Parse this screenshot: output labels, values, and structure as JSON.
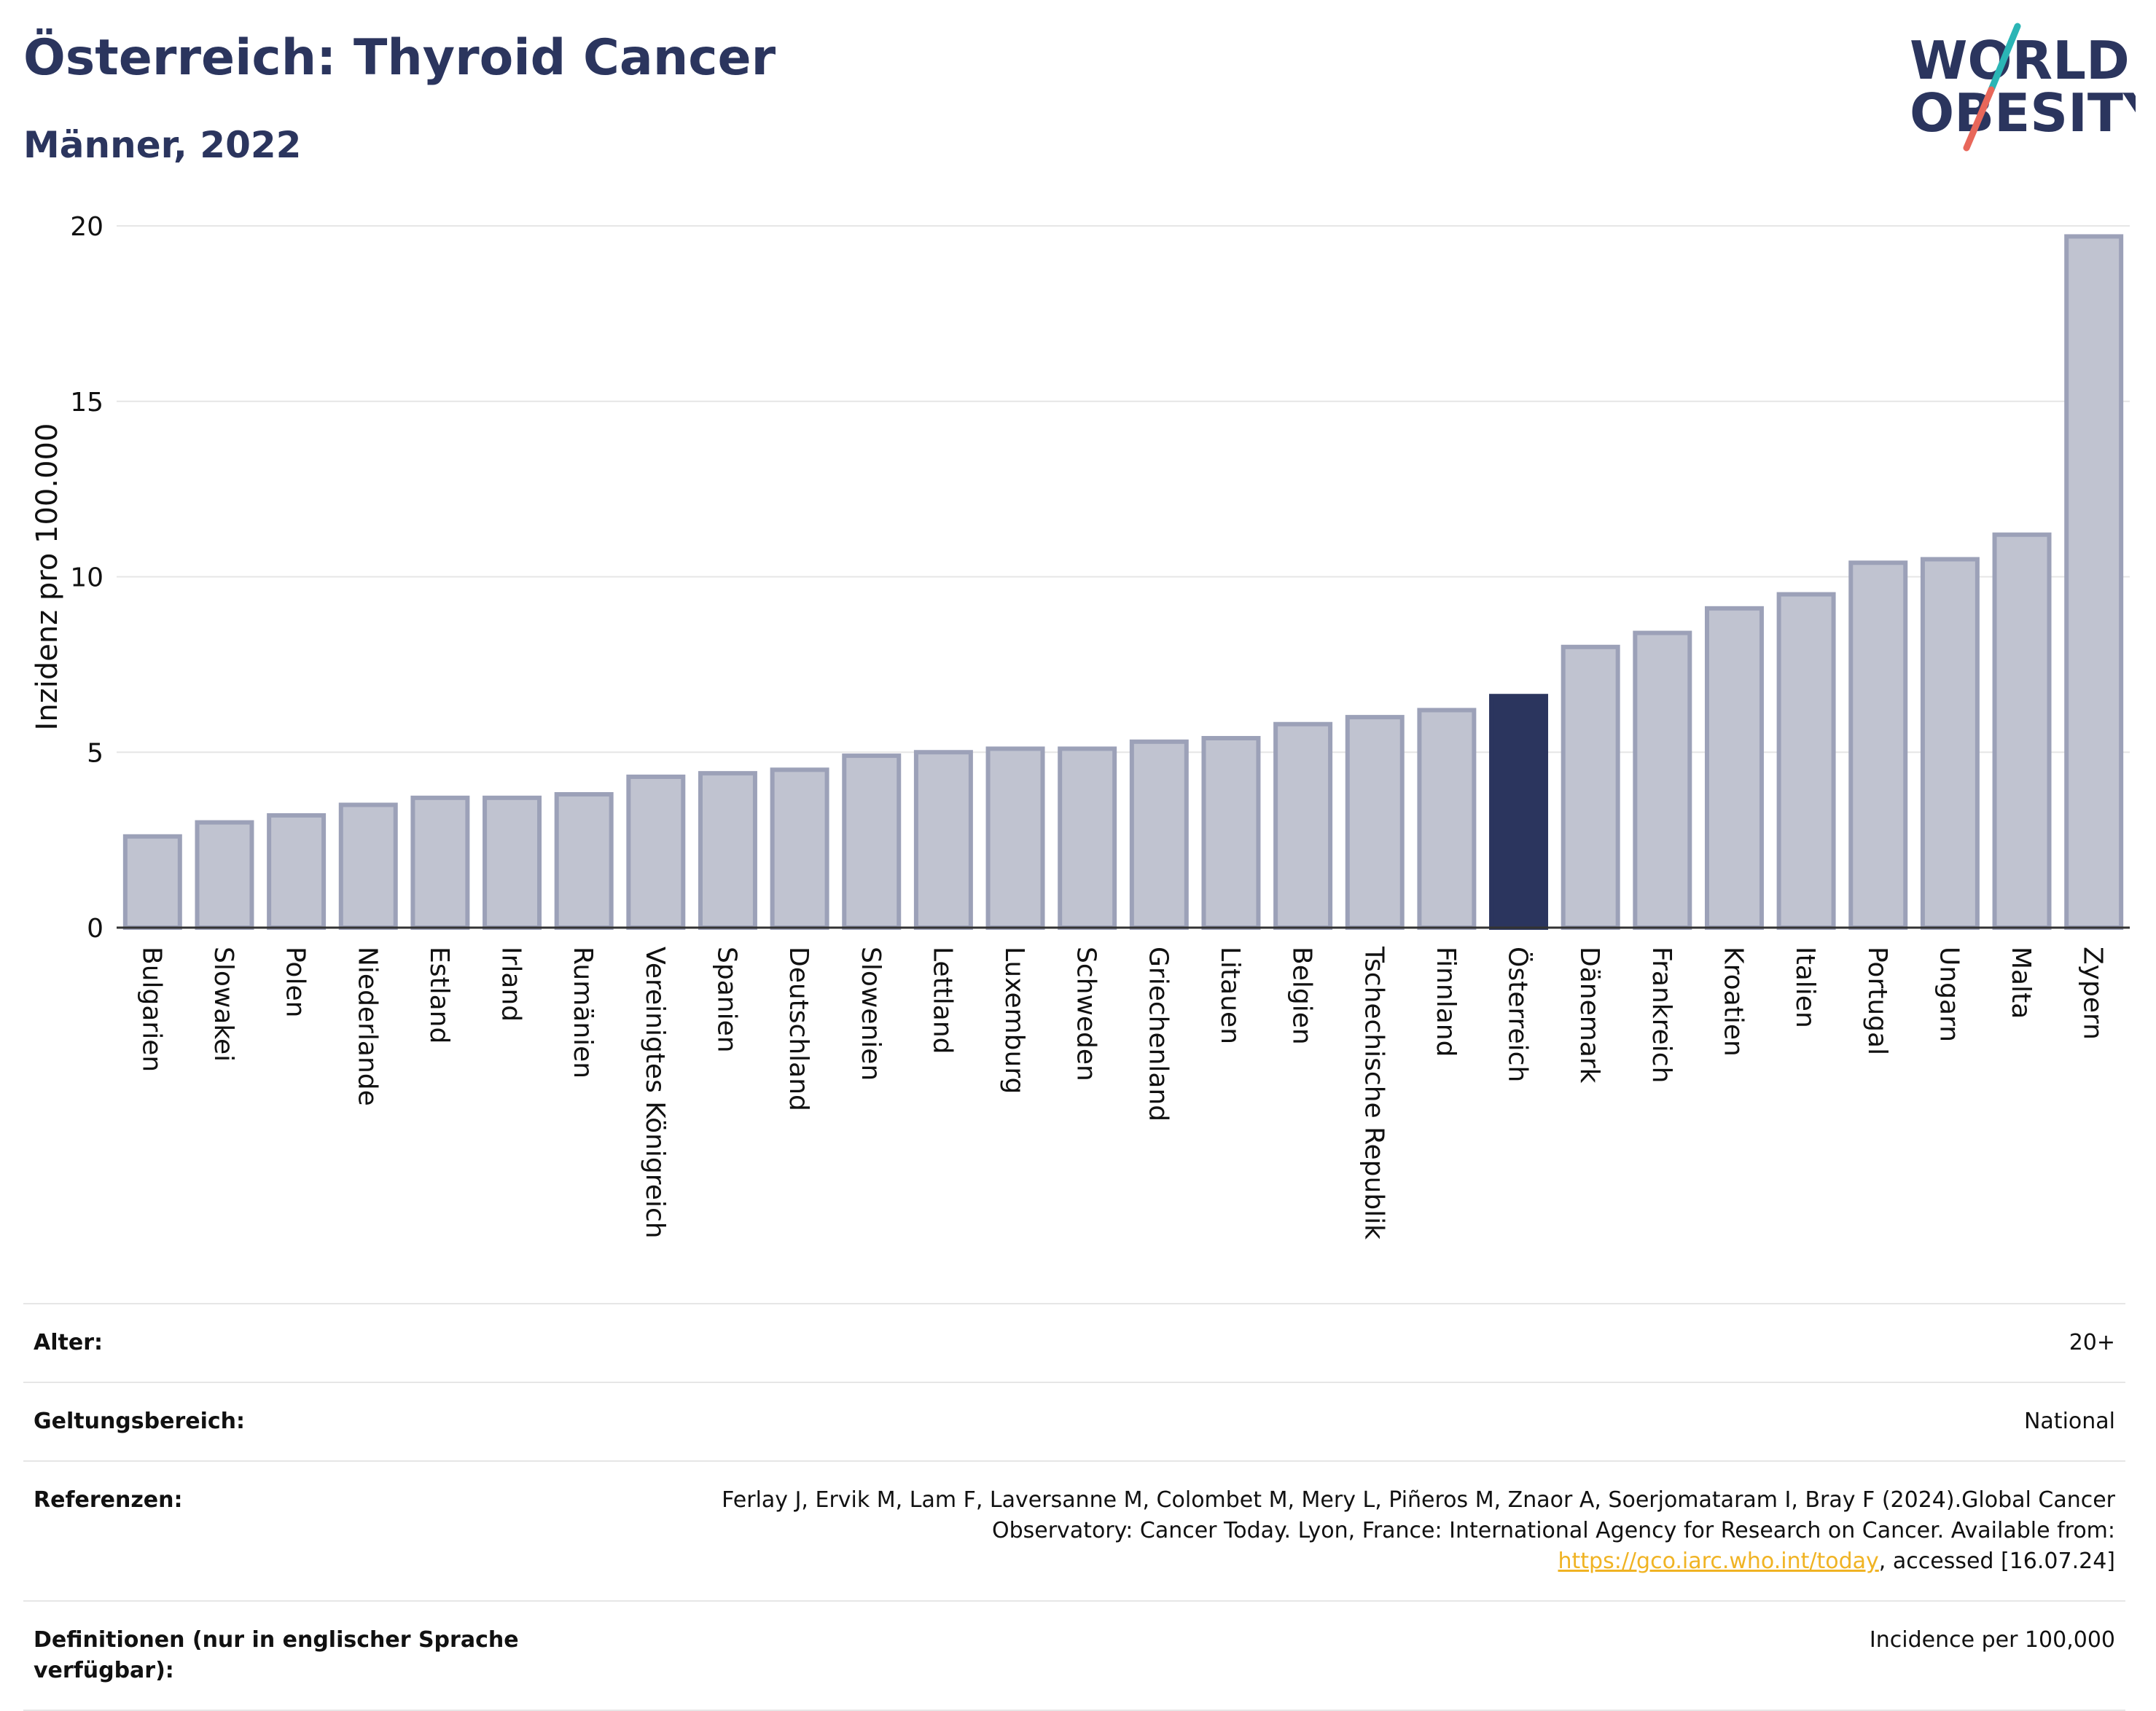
{
  "header": {
    "title": "Österreich: Thyroid Cancer",
    "subtitle": "Männer, 2022"
  },
  "logo": {
    "line1": "WORLD",
    "line2": "OBESITY",
    "colors": {
      "text": "#2b355e",
      "slash_top": "#2bb5b5",
      "slash_bottom": "#e8675a"
    }
  },
  "colors": {
    "bar": "#c0c3d0",
    "bar_border": "#9ca1b8",
    "highlight": "#2b355e",
    "grid": "#e6e6e6",
    "axis": "#333333"
  },
  "chart_data": {
    "type": "bar",
    "title": "Österreich: Thyroid Cancer",
    "subtitle": "Männer, 2022",
    "xlabel": "",
    "ylabel": "Inzidenz pro 100.000",
    "ylim": [
      0,
      20
    ],
    "yticks": [
      0,
      5,
      10,
      15,
      20
    ],
    "grid": true,
    "highlight": "Österreich",
    "categories": [
      "Bulgarien",
      "Slowakei",
      "Polen",
      "Niederlande",
      "Estland",
      "Irland",
      "Rumänien",
      "Vereinigtes Königreich",
      "Spanien",
      "Deutschland",
      "Slowenien",
      "Lettland",
      "Luxemburg",
      "Schweden",
      "Griechenland",
      "Litauen",
      "Belgien",
      "Tschechische Republik",
      "Finnland",
      "Österreich",
      "Dänemark",
      "Frankreich",
      "Kroatien",
      "Italien",
      "Portugal",
      "Ungarn",
      "Malta",
      "Zypern"
    ],
    "values": [
      2.6,
      3.0,
      3.2,
      3.5,
      3.7,
      3.7,
      3.8,
      4.3,
      4.4,
      4.5,
      4.9,
      5.0,
      5.1,
      5.1,
      5.3,
      5.4,
      5.8,
      6.0,
      6.2,
      6.6,
      8.0,
      8.4,
      9.1,
      9.5,
      10.4,
      10.5,
      11.2,
      19.7
    ]
  },
  "meta": [
    {
      "label": "Alter:",
      "value": "20+"
    },
    {
      "label": "Geltungsbereich:",
      "value": "National"
    },
    {
      "label": "Referenzen:",
      "value_pre": "Ferlay J, Ervik M, Lam F, Laversanne M, Colombet M, Mery L, Piñeros M, Znaor A, Soerjomataram I, Bray F (2024).Global Cancer Observatory: Cancer Today. Lyon, France: International Agency for Research on Cancer. Available from: ",
      "link": "https://gco.iarc.who.int/today",
      "value_post": ", accessed [16.07.24]"
    },
    {
      "label": "Definitionen (nur in englischer Sprache verfügbar):",
      "value": "Incidence per 100,000"
    }
  ]
}
